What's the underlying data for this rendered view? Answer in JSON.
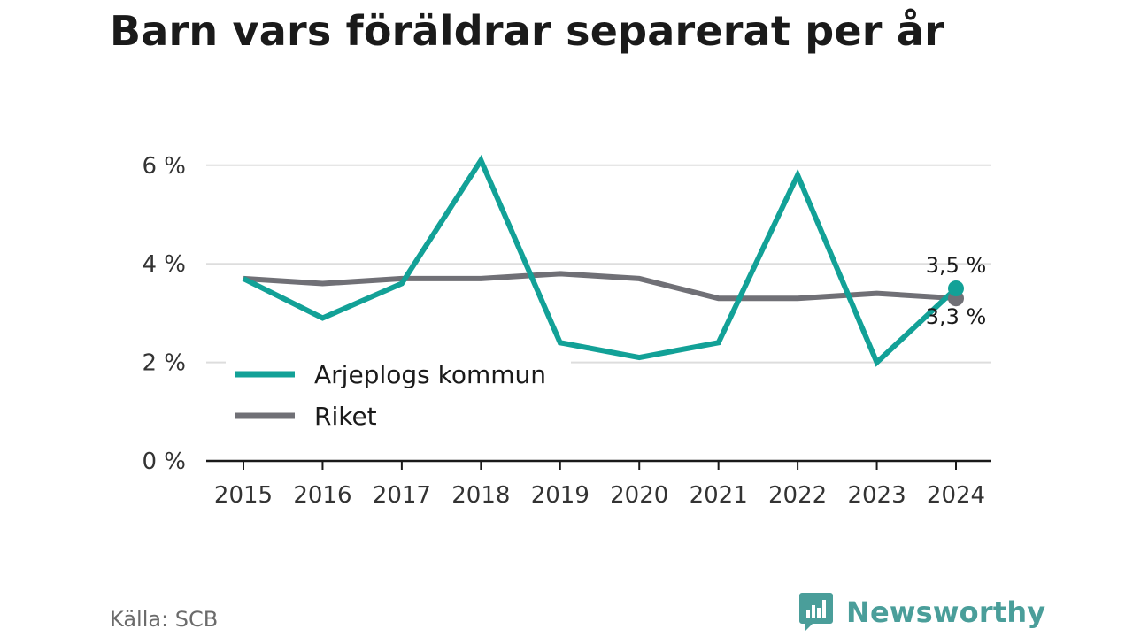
{
  "title": "Barn vars föräldrar separerat per år",
  "source": "Källa: SCB",
  "brand": {
    "name": "Newsworthy",
    "icon": "newsworthy-logo-icon"
  },
  "colors": {
    "series1": "#12a197",
    "series2": "#707076",
    "grid": "#dddddd",
    "axis": "#1a1a1a",
    "brand": "#4a9e9a"
  },
  "chart_data": {
    "type": "line",
    "title": "Barn vars föräldrar separerat per år",
    "x": [
      "2015",
      "2016",
      "2017",
      "2018",
      "2019",
      "2020",
      "2021",
      "2022",
      "2023",
      "2024"
    ],
    "series": [
      {
        "name": "Arjeplogs kommun",
        "values": [
          3.7,
          2.9,
          3.6,
          6.1,
          2.4,
          2.1,
          2.4,
          5.8,
          2.0,
          3.5
        ]
      },
      {
        "name": "Riket",
        "values": [
          3.7,
          3.6,
          3.7,
          3.7,
          3.8,
          3.7,
          3.3,
          3.3,
          3.4,
          3.3
        ]
      }
    ],
    "ylim": [
      0,
      6.5
    ],
    "yticks": [
      0,
      2,
      4,
      6
    ],
    "ytick_labels": [
      "0 %",
      "2 %",
      "4 %",
      "6 %"
    ],
    "end_labels": [
      "3,5 %",
      "3,3 %"
    ],
    "grid": true,
    "legend": "bottom-left inside plot"
  }
}
